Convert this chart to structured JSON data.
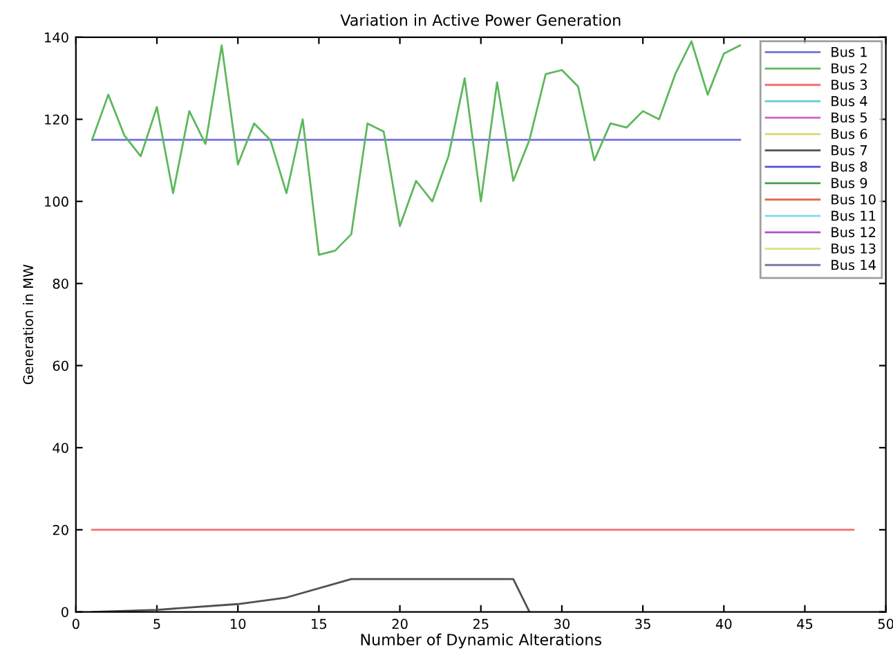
{
  "chart_data": {
    "type": "line",
    "title": "Variation in Active Power Generation",
    "xlabel": "Number of Dynamic Alterations",
    "ylabel": "Generation in MW",
    "xlim": [
      0,
      50
    ],
    "xticks": [
      0,
      5,
      10,
      15,
      20,
      25,
      30,
      35,
      40,
      45,
      50
    ],
    "ylim": [
      0,
      140
    ],
    "yticks": [
      0,
      20,
      40,
      60,
      80,
      100,
      120,
      140
    ],
    "grid": false,
    "legend": "top right",
    "marker": "none",
    "line_style": "solid",
    "series": [
      {
        "name": "Bus 1",
        "color": "#6f6fe0",
        "x": [
          1,
          41
        ],
        "values": [
          115,
          115
        ]
      },
      {
        "name": "Bus 2",
        "color": "#5cb85c",
        "x": [
          1,
          2,
          3,
          4,
          5,
          6,
          7,
          8,
          9,
          10,
          11,
          12,
          13,
          14,
          15,
          16,
          17,
          18,
          19,
          20,
          21,
          22,
          23,
          24,
          25,
          26,
          27,
          28,
          29,
          30,
          31,
          32,
          33,
          34,
          35,
          36,
          37,
          38,
          39,
          40,
          41
        ],
        "values": [
          115,
          126,
          116,
          111,
          123,
          102,
          122,
          114,
          138,
          109,
          119,
          115,
          102,
          120,
          87,
          88,
          92,
          119,
          117,
          94,
          105,
          100,
          111,
          130,
          100,
          129,
          105,
          115,
          131,
          132,
          128,
          110,
          119,
          118,
          122,
          120,
          131,
          139,
          126,
          136,
          138
        ]
      },
      {
        "name": "Bus 3",
        "color": "#f07070",
        "x": [
          1,
          48
        ],
        "values": [
          20,
          20
        ]
      },
      {
        "name": "Bus 4",
        "color": "#5fd0d0"
      },
      {
        "name": "Bus 5",
        "color": "#d060d0"
      },
      {
        "name": "Bus 6",
        "color": "#d8d870"
      },
      {
        "name": "Bus 7",
        "color": "#505050",
        "x": [
          1,
          5,
          10,
          13,
          17,
          27,
          28
        ],
        "values": [
          0,
          0.5,
          1.9,
          3.5,
          8,
          8,
          0
        ]
      },
      {
        "name": "Bus 8",
        "color": "#5050e0"
      },
      {
        "name": "Bus 9",
        "color": "#4a9a4a"
      },
      {
        "name": "Bus 10",
        "color": "#e07050"
      },
      {
        "name": "Bus 11",
        "color": "#80d8f0"
      },
      {
        "name": "Bus 12",
        "color": "#b050d0"
      },
      {
        "name": "Bus 13",
        "color": "#d0e880"
      },
      {
        "name": "Bus 14",
        "color": "#7070a0"
      }
    ]
  }
}
